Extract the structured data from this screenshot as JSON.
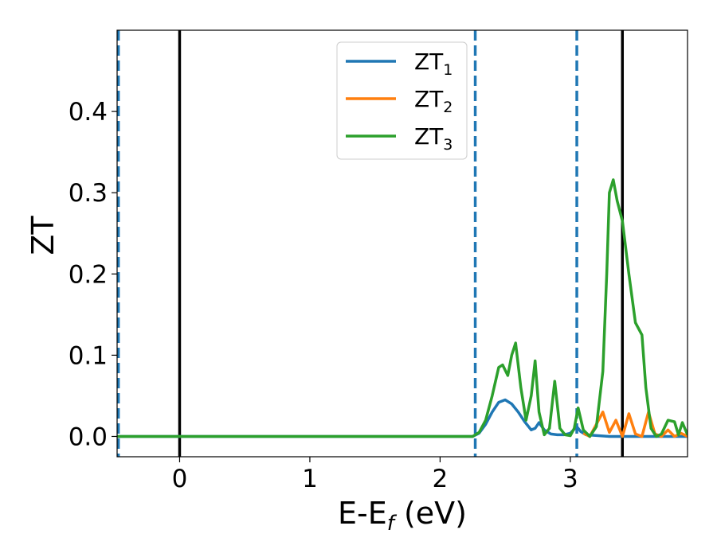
{
  "chart_data": {
    "type": "line",
    "xlabel": "E-E",
    "xlabel_sub": "f",
    "xlabel_unit": " (eV)",
    "ylabel": "ZT",
    "xlim": [
      -0.48,
      3.9
    ],
    "ylim": [
      -0.025,
      0.5
    ],
    "xticks": [
      0,
      1,
      2,
      3
    ],
    "xtick_labels": [
      "0",
      "1",
      "2",
      "3"
    ],
    "yticks": [
      0.0,
      0.1,
      0.2,
      0.3,
      0.4
    ],
    "ytick_labels": [
      "0.0",
      "0.1",
      "0.2",
      "0.3",
      "0.4"
    ],
    "grid": false,
    "legend_position": "top-center",
    "vlines": [
      {
        "x": -0.47,
        "style": "dashed",
        "color": "#1f77b4"
      },
      {
        "x": 0.0,
        "style": "solid",
        "color": "#000000"
      },
      {
        "x": 2.27,
        "style": "dashed",
        "color": "#1f77b4"
      },
      {
        "x": 3.05,
        "style": "dashed",
        "color": "#1f77b4"
      },
      {
        "x": 3.4,
        "style": "solid",
        "color": "#000000"
      }
    ],
    "series": [
      {
        "name": "ZT",
        "sub": "1",
        "color": "#1f77b4",
        "x": [
          -0.48,
          2.0,
          2.25,
          2.3,
          2.35,
          2.4,
          2.45,
          2.5,
          2.55,
          2.6,
          2.65,
          2.7,
          2.73,
          2.76,
          2.8,
          2.85,
          2.9,
          2.95,
          3.0,
          3.05,
          3.08,
          3.12,
          3.3,
          3.6,
          3.9
        ],
        "y": [
          0.0,
          0.0,
          0.0,
          0.004,
          0.015,
          0.03,
          0.042,
          0.045,
          0.04,
          0.03,
          0.018,
          0.008,
          0.01,
          0.017,
          0.008,
          0.003,
          0.002,
          0.002,
          0.004,
          0.012,
          0.006,
          0.002,
          0.0,
          0.0,
          0.0
        ]
      },
      {
        "name": "ZT",
        "sub": "2",
        "color": "#ff7f0e",
        "x": [
          3.1,
          3.15,
          3.2,
          3.25,
          3.3,
          3.35,
          3.4,
          3.45,
          3.5,
          3.55,
          3.6,
          3.65,
          3.7,
          3.75,
          3.8,
          3.85,
          3.9
        ],
        "y": [
          0.004,
          0.0,
          0.015,
          0.03,
          0.005,
          0.02,
          0.0,
          0.028,
          0.003,
          0.0,
          0.03,
          0.003,
          0.0,
          0.008,
          0.0,
          0.004,
          0.0
        ]
      },
      {
        "name": "ZT",
        "sub": "3",
        "color": "#2ca02c",
        "x": [
          -0.48,
          2.0,
          2.25,
          2.3,
          2.35,
          2.4,
          2.45,
          2.48,
          2.52,
          2.55,
          2.58,
          2.62,
          2.66,
          2.7,
          2.73,
          2.76,
          2.8,
          2.84,
          2.88,
          2.92,
          2.96,
          3.0,
          3.03,
          3.06,
          3.1,
          3.15,
          3.2,
          3.25,
          3.28,
          3.3,
          3.33,
          3.36,
          3.4,
          3.45,
          3.5,
          3.55,
          3.58,
          3.62,
          3.66,
          3.7,
          3.75,
          3.8,
          3.83,
          3.86,
          3.9
        ],
        "y": [
          0.0,
          0.0,
          0.0,
          0.005,
          0.02,
          0.05,
          0.085,
          0.088,
          0.075,
          0.1,
          0.115,
          0.06,
          0.02,
          0.05,
          0.093,
          0.03,
          0.002,
          0.01,
          0.068,
          0.01,
          0.002,
          0.001,
          0.01,
          0.035,
          0.008,
          0.0,
          0.012,
          0.08,
          0.2,
          0.3,
          0.316,
          0.29,
          0.265,
          0.2,
          0.14,
          0.125,
          0.06,
          0.01,
          0.0,
          0.003,
          0.02,
          0.018,
          0.002,
          0.017,
          0.002
        ]
      }
    ]
  }
}
